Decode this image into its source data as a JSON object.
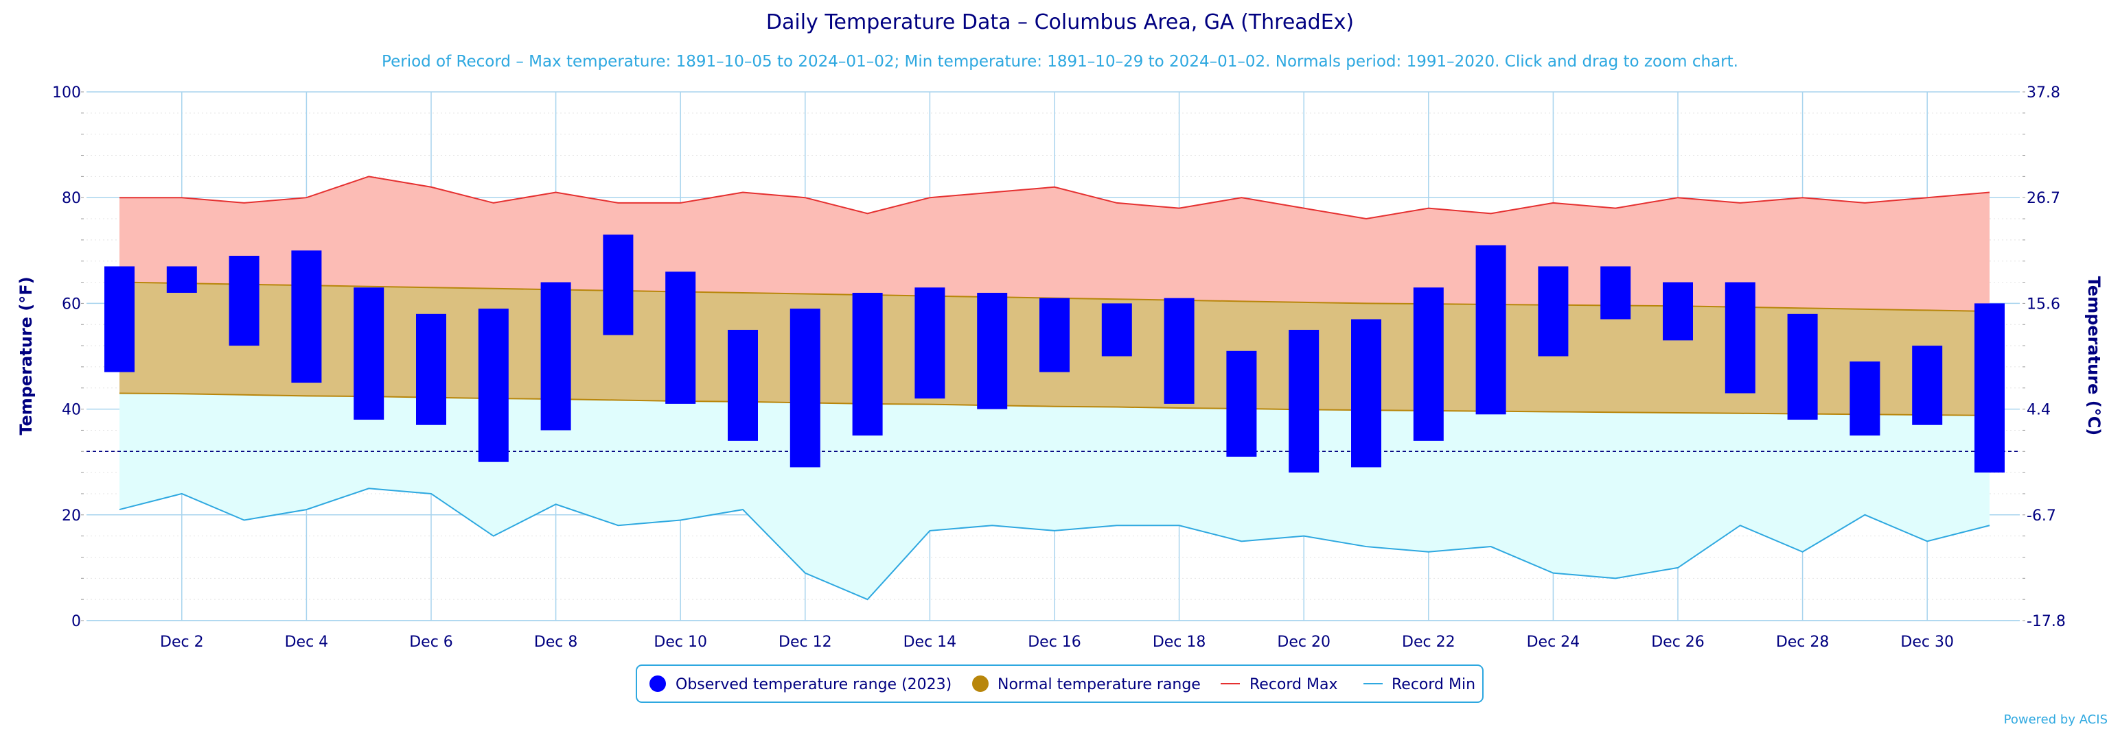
{
  "header": {
    "title": "Daily Temperature Data – Columbus Area, GA (ThreadEx)",
    "subtitle": "Period of Record – Max temperature: 1891–10–05 to 2024–01–02; Min temperature: 1891–10–29 to 2024–01–02. Normals period: 1991–2020. Click and drag to zoom chart."
  },
  "credits": "Powered by ACIS",
  "legend": {
    "observed": "Observed temperature range (2023)",
    "normal": "Normal temperature range",
    "record_max": "Record Max",
    "record_min": "Record Min"
  },
  "colors": {
    "observed": "#0000ff",
    "normal_fill": "#dbc07f",
    "normal_line": "#b8860b",
    "record_max_line": "#e53030",
    "record_max_fill": "#fcbcb5",
    "record_min_line": "#2ea8e0",
    "record_min_fill": "#e0fdfd",
    "axis_text": "#000080",
    "grid": "#a8d4ee",
    "freezing_line": "#000080"
  },
  "chart_data": {
    "type": "bar",
    "title": "Daily Temperature Data – Columbus Area, GA (ThreadEx)",
    "days": [
      1,
      2,
      3,
      4,
      5,
      6,
      7,
      8,
      9,
      10,
      11,
      12,
      13,
      14,
      15,
      16,
      17,
      18,
      19,
      20,
      21,
      22,
      23,
      24,
      25,
      26,
      27,
      28,
      29,
      30,
      31
    ],
    "x_tick_labels": [
      "Dec 2",
      "Dec 4",
      "Dec 6",
      "Dec 8",
      "Dec 10",
      "Dec 12",
      "Dec 14",
      "Dec 16",
      "Dec 18",
      "Dec 20",
      "Dec 22",
      "Dec 24",
      "Dec 26",
      "Dec 28",
      "Dec 30"
    ],
    "x_tick_days": [
      2,
      4,
      6,
      8,
      10,
      12,
      14,
      16,
      18,
      20,
      22,
      24,
      26,
      28,
      30
    ],
    "ylabel": "Temperature (°F)",
    "ylabel_right": "Temperature (°C)",
    "ylim": [
      0,
      100
    ],
    "y_ticks": [
      0,
      20,
      40,
      60,
      80,
      100
    ],
    "y_ticks_right": [
      {
        "value_f": 0,
        "label": "-17.8"
      },
      {
        "value_f": 20,
        "label": "-6.7"
      },
      {
        "value_f": 40,
        "label": "4.4"
      },
      {
        "value_f": 60,
        "label": "15.6"
      },
      {
        "value_f": 80,
        "label": "26.7"
      },
      {
        "value_f": 100,
        "label": "37.8"
      }
    ],
    "freezing_line": 32,
    "grid": true,
    "legend_position": "bottom-center",
    "series": [
      {
        "name": "Observed temperature range (2023)",
        "low": [
          47,
          62,
          52,
          45,
          38,
          37,
          30,
          36,
          54,
          41,
          34,
          29,
          35,
          42,
          40,
          47,
          50,
          41,
          31,
          28,
          29,
          34,
          39,
          50,
          57,
          53,
          43,
          38,
          35,
          37,
          28
        ],
        "high": [
          67,
          67,
          69,
          70,
          63,
          58,
          59,
          64,
          73,
          66,
          55,
          59,
          62,
          63,
          62,
          61,
          60,
          61,
          51,
          55,
          57,
          63,
          71,
          67,
          67,
          64,
          64,
          58,
          49,
          52,
          60
        ]
      },
      {
        "name": "Normal temperature range",
        "low": [
          43,
          42.9,
          42.7,
          42.5,
          42.4,
          42.2,
          42,
          41.9,
          41.7,
          41.5,
          41.4,
          41.2,
          41,
          40.9,
          40.7,
          40.5,
          40.4,
          40.2,
          40.1,
          39.9,
          39.8,
          39.7,
          39.6,
          39.5,
          39.4,
          39.3,
          39.2,
          39.1,
          39,
          38.9,
          38.8
        ],
        "high": [
          64,
          63.8,
          63.6,
          63.4,
          63.2,
          63,
          62.8,
          62.6,
          62.4,
          62.2,
          62,
          61.8,
          61.6,
          61.4,
          61.2,
          61,
          60.8,
          60.6,
          60.4,
          60.2,
          60,
          59.9,
          59.8,
          59.7,
          59.6,
          59.5,
          59.3,
          59.1,
          58.9,
          58.7,
          58.5
        ]
      },
      {
        "name": "Record Max",
        "values": [
          80,
          80,
          79,
          80,
          84,
          82,
          79,
          81,
          79,
          79,
          81,
          80,
          77,
          80,
          81,
          82,
          79,
          78,
          80,
          78,
          76,
          78,
          77,
          79,
          78,
          80,
          79,
          80,
          79,
          80,
          81
        ]
      },
      {
        "name": "Record Min",
        "values": [
          21,
          24,
          19,
          21,
          25,
          24,
          16,
          22,
          18,
          19,
          21,
          9,
          4,
          17,
          18,
          17,
          18,
          18,
          15,
          16,
          14,
          13,
          14,
          9,
          8,
          10,
          18,
          13,
          20,
          15,
          18
        ]
      }
    ]
  }
}
